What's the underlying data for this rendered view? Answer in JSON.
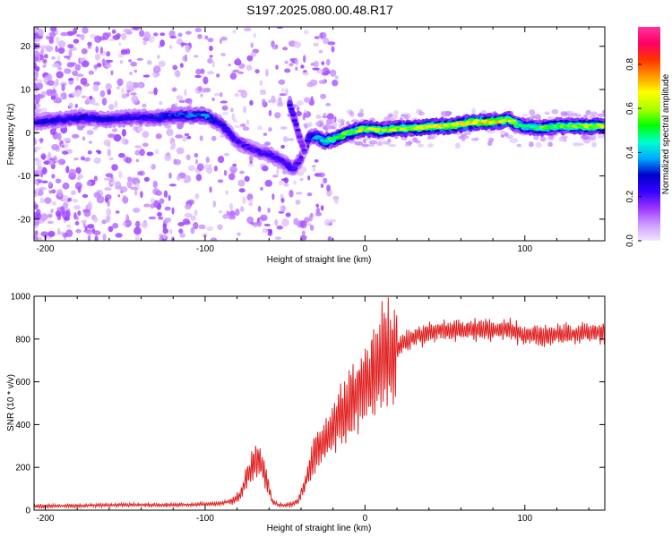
{
  "title": "S197.2025.080.00.48.R17",
  "chart_data": [
    {
      "type": "heatmap",
      "xlabel": "Height of straight line (km)",
      "ylabel": "Frequency (Hz)",
      "xlim": [
        -207,
        150
      ],
      "ylim": [
        -25,
        24.5
      ],
      "xticks": [
        -200,
        -100,
        0,
        100
      ],
      "yticks": [
        -20,
        -10,
        0,
        10,
        20
      ],
      "colorbar": {
        "label": "Normalized spectral amplitude",
        "ticks": [
          "0.0",
          "0.2",
          "0.4",
          "0.6",
          "0.8"
        ],
        "range": [
          0,
          0.97
        ],
        "colors": [
          "#f2e6ff",
          "#cc99ff",
          "#9933ff",
          "#3300ff",
          "#0000cc",
          "#00aaff",
          "#00ffcc",
          "#00ff00",
          "#aaff00",
          "#ffff00",
          "#ff9900",
          "#ff3300",
          "#ff0066",
          "#ff3399"
        ]
      },
      "ridge": {
        "x": [
          -205,
          -190,
          -175,
          -160,
          -145,
          -130,
          -115,
          -100,
          -90,
          -80,
          -70,
          -60,
          -50,
          -45,
          -40,
          -35,
          -30,
          -25,
          -20,
          -10,
          0,
          10,
          20,
          30,
          40,
          50,
          60,
          70,
          80,
          90,
          95,
          100,
          110,
          120,
          130,
          140,
          150
        ],
        "freq": [
          2.5,
          3.0,
          3.5,
          3.0,
          3.5,
          3.5,
          4.0,
          4.0,
          2.0,
          -2.0,
          -4.0,
          -5.0,
          -7.0,
          -8.5,
          -6.0,
          -1.0,
          -1.0,
          -2.0,
          -1.5,
          0.0,
          1.0,
          0.5,
          1.0,
          1.0,
          1.5,
          1.5,
          2.0,
          2.5,
          2.5,
          3.0,
          2.0,
          1.5,
          1.0,
          1.5,
          1.5,
          1.5,
          1.5
        ],
        "amplitude": [
          0.3,
          0.3,
          0.32,
          0.3,
          0.3,
          0.33,
          0.38,
          0.42,
          0.3,
          0.25,
          0.25,
          0.25,
          0.25,
          0.28,
          0.2,
          0.3,
          0.45,
          0.55,
          0.6,
          0.65,
          0.7,
          0.7,
          0.72,
          0.72,
          0.75,
          0.75,
          0.78,
          0.78,
          0.8,
          0.75,
          0.6,
          0.6,
          0.62,
          0.65,
          0.68,
          0.7,
          0.7
        ]
      },
      "branch": {
        "x": [
          -47,
          -44,
          -41,
          -38
        ],
        "freq": [
          6.5,
          3.0,
          -1.0,
          -4.0
        ],
        "amplitude": [
          0.3,
          0.25,
          0.2,
          0.2
        ]
      }
    },
    {
      "type": "line",
      "xlabel": "Height of straight line (km)",
      "ylabel": "SNR (10 * v/v)",
      "xlim": [
        -207,
        150
      ],
      "ylim": [
        0,
        1000
      ],
      "xticks": [
        -200,
        -100,
        0,
        100
      ],
      "yticks": [
        0,
        200,
        400,
        600,
        800,
        1000
      ],
      "series": [
        {
          "color": "#e02020",
          "x": [
            -207,
            -190,
            -170,
            -150,
            -130,
            -110,
            -100,
            -90,
            -82,
            -78,
            -74,
            -70,
            -66,
            -62,
            -58,
            -54,
            -50,
            -46,
            -42,
            -40,
            -38,
            -36,
            -34,
            -32,
            -30,
            -28,
            -26,
            -24,
            -22,
            -20,
            -18,
            -16,
            -14,
            -12,
            -10,
            -8,
            -6,
            -4,
            -2,
            0,
            4,
            8,
            12,
            16,
            20,
            24,
            28,
            32,
            36,
            40,
            50,
            60,
            70,
            80,
            90,
            100,
            110,
            120,
            130,
            140,
            150
          ],
          "y": [
            18,
            20,
            22,
            25,
            24,
            25,
            28,
            32,
            45,
            70,
            150,
            220,
            240,
            150,
            40,
            25,
            22,
            28,
            40,
            80,
            120,
            160,
            200,
            250,
            280,
            300,
            320,
            340,
            360,
            380,
            400,
            430,
            460,
            480,
            500,
            510,
            530,
            550,
            570,
            600,
            640,
            680,
            720,
            740,
            760,
            780,
            800,
            810,
            820,
            830,
            840,
            840,
            845,
            840,
            845,
            820,
            820,
            820,
            825,
            830,
            830
          ]
        }
      ]
    }
  ]
}
